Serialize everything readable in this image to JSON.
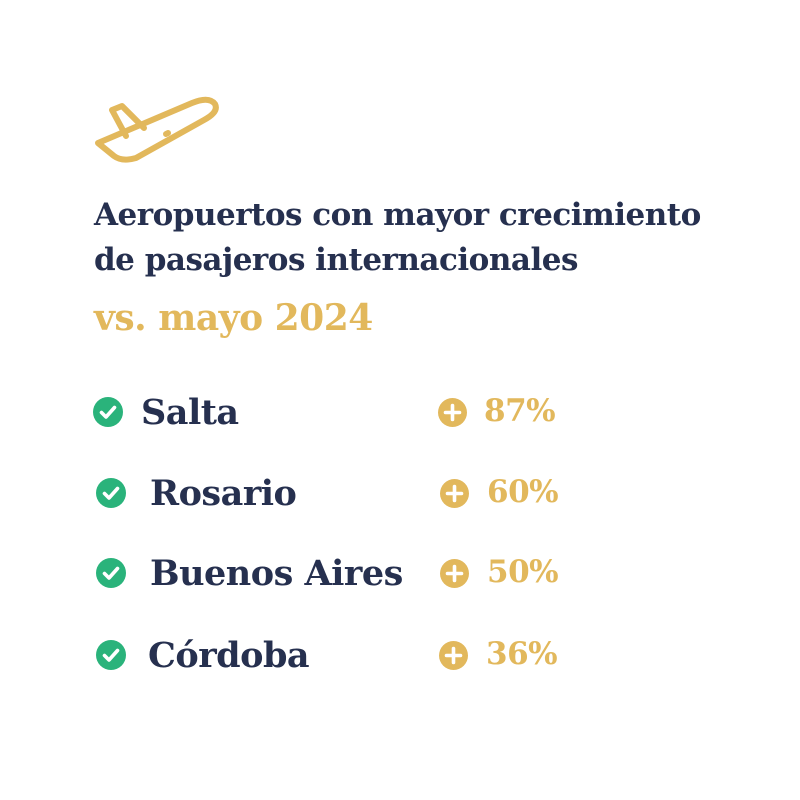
{
  "header": {
    "icon": "airplane-takeoff-icon",
    "title_line1": "Aeropuertos con mayor crecimiento",
    "title_line2": "de pasajeros internacionales",
    "subtitle": "vs. mayo 2024"
  },
  "colors": {
    "navy": "#26304f",
    "gold": "#e2b85c",
    "green": "#2ab37b"
  },
  "airports": [
    {
      "name": "Salta",
      "growth": "87%",
      "growth_value": 87
    },
    {
      "name": "Rosario",
      "growth": "60%",
      "growth_value": 60
    },
    {
      "name": "Buenos Aires",
      "growth": "50%",
      "growth_value": 50
    },
    {
      "name": "Córdoba",
      "growth": "36%",
      "growth_value": 36
    }
  ]
}
